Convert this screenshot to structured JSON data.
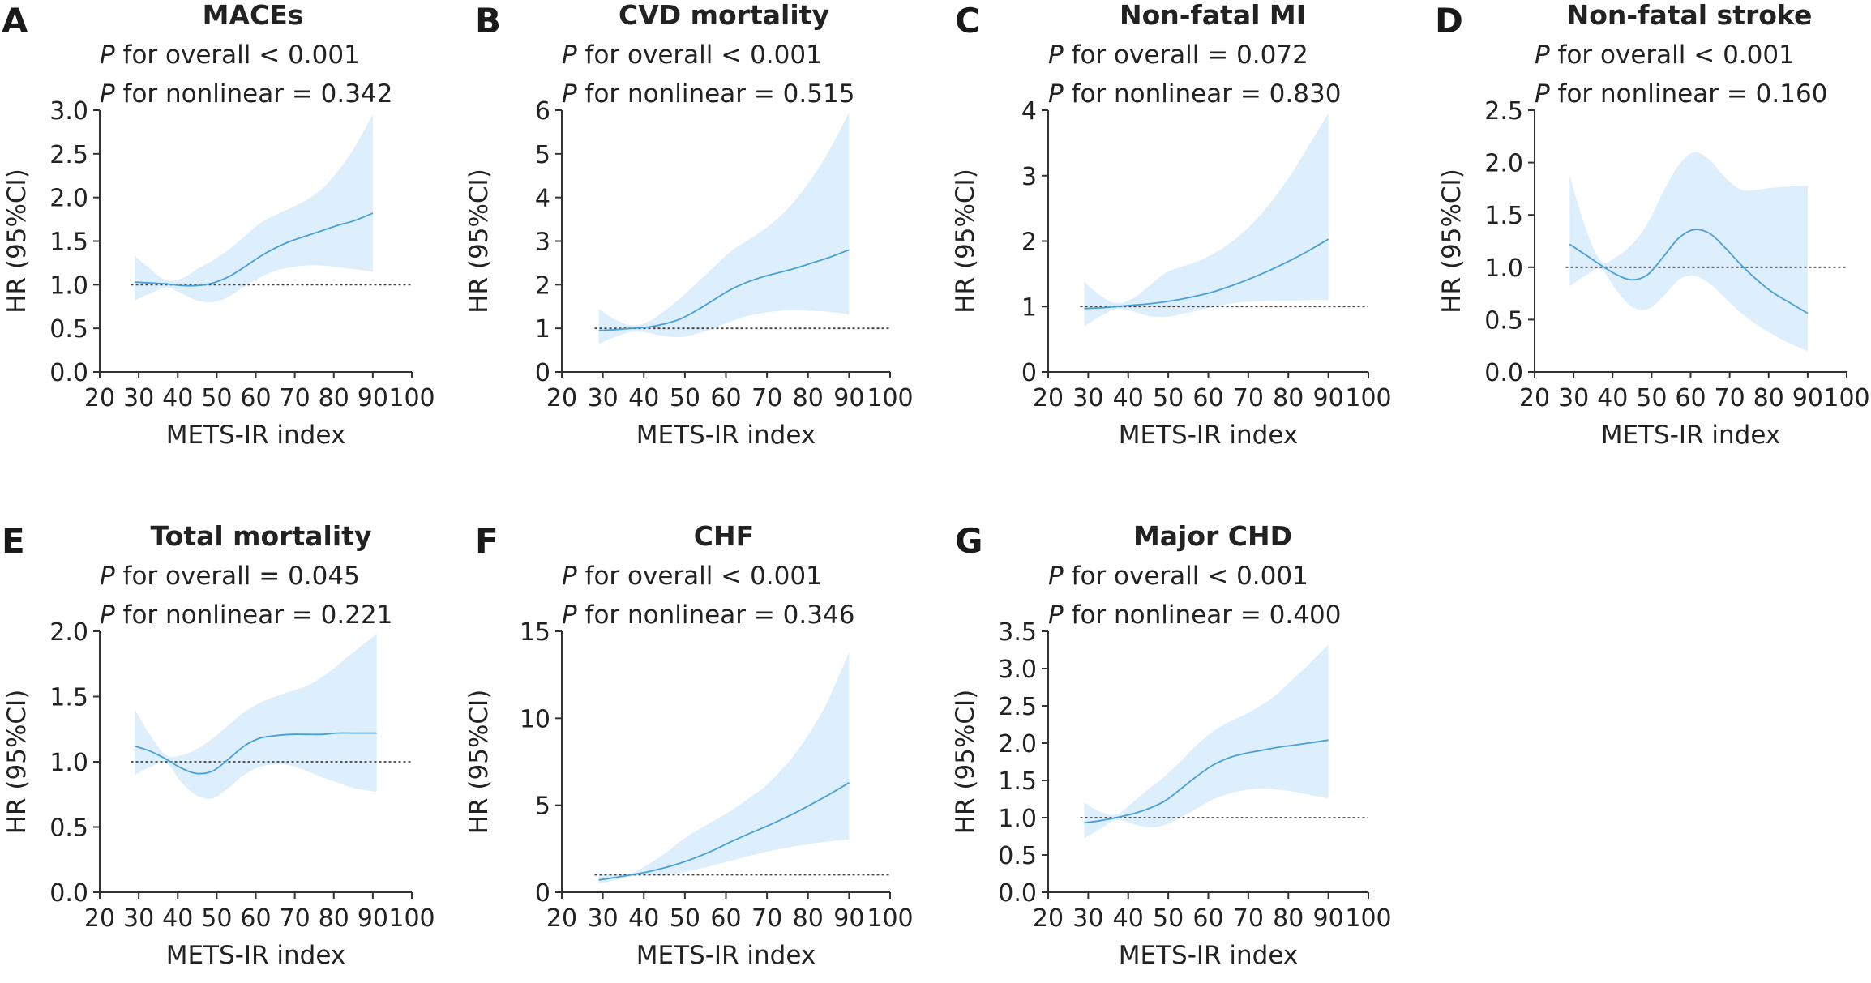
{
  "colors": {
    "band": "#ddeefc",
    "line": "#4a9fd6",
    "reference": "#444444"
  },
  "chart_data": [
    {
      "type": "line",
      "letter": "A",
      "title": "MACEs",
      "p_overall": "P for overall < 0.001",
      "p_nonlinear": "P for nonlinear = 0.342",
      "xlabel": "METS-IR index",
      "ylabel": "HR (95%CI)",
      "xlim": [
        20,
        100
      ],
      "ylim": [
        0,
        3.0
      ],
      "xticks": [
        "20",
        "30",
        "40",
        "50",
        "60",
        "70",
        "80",
        "90",
        "100"
      ],
      "yticks": [
        "0.0",
        "0.5",
        "1.0",
        "1.5",
        "2.0",
        "2.5",
        "3.0"
      ],
      "reference": 1.0,
      "series": [
        {
          "x": [
            29,
            33,
            37,
            41,
            45,
            49,
            53,
            57,
            61,
            65,
            69,
            73,
            77,
            81,
            85,
            90
          ],
          "y": [
            1.03,
            1.02,
            1.01,
            0.99,
            0.99,
            1.02,
            1.09,
            1.2,
            1.32,
            1.42,
            1.5,
            1.56,
            1.62,
            1.68,
            1.73,
            1.82
          ],
          "lower": [
            0.82,
            0.9,
            0.97,
            0.9,
            0.82,
            0.8,
            0.86,
            0.98,
            1.08,
            1.16,
            1.2,
            1.22,
            1.22,
            1.2,
            1.18,
            1.15
          ],
          "upper": [
            1.33,
            1.18,
            1.05,
            1.07,
            1.18,
            1.28,
            1.4,
            1.55,
            1.7,
            1.8,
            1.88,
            1.97,
            2.1,
            2.3,
            2.55,
            2.95
          ]
        }
      ]
    },
    {
      "type": "line",
      "letter": "B",
      "title": "CVD mortality",
      "p_overall": "P for overall < 0.001",
      "p_nonlinear": "P for nonlinear = 0.515",
      "xlabel": "METS-IR index",
      "ylabel": "HR (95%CI)",
      "xlim": [
        20,
        100
      ],
      "ylim": [
        0,
        6
      ],
      "xticks": [
        "20",
        "30",
        "40",
        "50",
        "60",
        "70",
        "80",
        "90",
        "100"
      ],
      "yticks": [
        "0",
        "1",
        "2",
        "3",
        "4",
        "5",
        "6"
      ],
      "reference": 1.0,
      "series": [
        {
          "x": [
            29,
            33,
            37,
            41,
            45,
            49,
            53,
            57,
            61,
            65,
            69,
            73,
            77,
            81,
            85,
            90
          ],
          "y": [
            0.95,
            0.97,
            1.0,
            1.03,
            1.1,
            1.22,
            1.42,
            1.65,
            1.88,
            2.05,
            2.18,
            2.28,
            2.38,
            2.5,
            2.62,
            2.8
          ],
          "lower": [
            0.65,
            0.8,
            0.92,
            0.9,
            0.82,
            0.8,
            0.88,
            1.0,
            1.15,
            1.28,
            1.35,
            1.4,
            1.42,
            1.4,
            1.38,
            1.32
          ],
          "upper": [
            1.45,
            1.2,
            1.07,
            1.15,
            1.4,
            1.7,
            2.05,
            2.4,
            2.75,
            3.0,
            3.25,
            3.55,
            3.95,
            4.45,
            5.05,
            5.95
          ]
        }
      ]
    },
    {
      "type": "line",
      "letter": "C",
      "title": "Non-fatal MI",
      "p_overall": "P for overall = 0.072",
      "p_nonlinear": "P for nonlinear = 0.830",
      "xlabel": "METS-IR index",
      "ylabel": "HR (95%CI)",
      "xlim": [
        20,
        100
      ],
      "ylim": [
        0,
        4
      ],
      "xticks": [
        "20",
        "30",
        "40",
        "50",
        "60",
        "70",
        "80",
        "90",
        "100"
      ],
      "yticks": [
        "0",
        "1",
        "2",
        "3",
        "4"
      ],
      "reference": 1.0,
      "series": [
        {
          "x": [
            29,
            33,
            37,
            41,
            45,
            49,
            53,
            57,
            61,
            65,
            69,
            73,
            77,
            81,
            85,
            90
          ],
          "y": [
            0.97,
            0.98,
            1.0,
            1.02,
            1.04,
            1.07,
            1.11,
            1.16,
            1.22,
            1.3,
            1.39,
            1.49,
            1.6,
            1.72,
            1.85,
            2.03
          ],
          "lower": [
            0.7,
            0.85,
            0.96,
            0.93,
            0.86,
            0.84,
            0.88,
            0.93,
            0.99,
            1.04,
            1.07,
            1.08,
            1.09,
            1.09,
            1.1,
            1.1
          ],
          "upper": [
            1.38,
            1.17,
            1.05,
            1.12,
            1.3,
            1.5,
            1.6,
            1.68,
            1.8,
            1.95,
            2.15,
            2.4,
            2.7,
            3.05,
            3.45,
            3.95
          ]
        }
      ]
    },
    {
      "type": "line",
      "letter": "D",
      "title": "Non-fatal stroke",
      "p_overall": "P for overall < 0.001",
      "p_nonlinear": "P for nonlinear = 0.160",
      "xlabel": "METS-IR index",
      "ylabel": "HR (95%CI)",
      "xlim": [
        20,
        100
      ],
      "ylim": [
        0,
        2.5
      ],
      "xticks": [
        "20",
        "30",
        "40",
        "50",
        "60",
        "70",
        "80",
        "90",
        "100"
      ],
      "yticks": [
        "0.0",
        "0.5",
        "1.0",
        "1.5",
        "2.0",
        "2.5"
      ],
      "reference": 1.0,
      "series": [
        {
          "x": [
            29,
            33,
            37,
            41,
            45,
            49,
            53,
            57,
            61,
            65,
            69,
            73,
            77,
            81,
            85,
            90
          ],
          "y": [
            1.22,
            1.12,
            1.02,
            0.93,
            0.88,
            0.93,
            1.1,
            1.28,
            1.36,
            1.32,
            1.18,
            1.02,
            0.88,
            0.76,
            0.67,
            0.56
          ],
          "lower": [
            0.82,
            0.92,
            0.98,
            0.78,
            0.62,
            0.6,
            0.72,
            0.88,
            0.92,
            0.84,
            0.7,
            0.56,
            0.45,
            0.36,
            0.28,
            0.2
          ],
          "upper": [
            1.88,
            1.38,
            1.06,
            1.1,
            1.22,
            1.42,
            1.72,
            1.98,
            2.1,
            2.02,
            1.85,
            1.74,
            1.74,
            1.76,
            1.77,
            1.78
          ]
        }
      ]
    },
    {
      "type": "line",
      "letter": "E",
      "title": "Total mortality",
      "p_overall": "P for overall = 0.045",
      "p_nonlinear": "P for nonlinear = 0.221",
      "xlabel": "METS-IR index",
      "ylabel": "HR (95%CI)",
      "xlim": [
        20,
        100
      ],
      "ylim": [
        0,
        2.0
      ],
      "xticks": [
        "20",
        "30",
        "40",
        "50",
        "60",
        "70",
        "80",
        "90",
        "100"
      ],
      "yticks": [
        "0.0",
        "0.5",
        "1.0",
        "1.5",
        "2.0"
      ],
      "reference": 1.0,
      "series": [
        {
          "x": [
            29,
            33,
            37,
            41,
            45,
            49,
            53,
            57,
            61,
            65,
            69,
            73,
            77,
            81,
            85,
            91
          ],
          "y": [
            1.12,
            1.08,
            1.02,
            0.95,
            0.91,
            0.93,
            1.02,
            1.12,
            1.18,
            1.2,
            1.21,
            1.21,
            1.21,
            1.22,
            1.22,
            1.22
          ],
          "lower": [
            0.9,
            0.96,
            0.99,
            0.84,
            0.74,
            0.72,
            0.8,
            0.9,
            0.96,
            0.98,
            0.97,
            0.93,
            0.88,
            0.84,
            0.8,
            0.77
          ],
          "upper": [
            1.4,
            1.2,
            1.05,
            1.05,
            1.1,
            1.18,
            1.28,
            1.38,
            1.45,
            1.5,
            1.54,
            1.58,
            1.65,
            1.74,
            1.84,
            1.98
          ]
        }
      ]
    },
    {
      "type": "line",
      "letter": "F",
      "title": "CHF",
      "p_overall": "P for overall < 0.001",
      "p_nonlinear": "P for nonlinear = 0.346",
      "xlabel": "METS-IR index",
      "ylabel": "HR (95%CI)",
      "xlim": [
        20,
        100
      ],
      "ylim": [
        0,
        15
      ],
      "xticks": [
        "20",
        "30",
        "40",
        "50",
        "60",
        "70",
        "80",
        "90",
        "100"
      ],
      "yticks": [
        "0",
        "5",
        "10",
        "15"
      ],
      "reference": 1.0,
      "series": [
        {
          "x": [
            29,
            33,
            37,
            41,
            45,
            49,
            53,
            57,
            61,
            65,
            69,
            73,
            77,
            81,
            85,
            90
          ],
          "y": [
            0.7,
            0.85,
            1.0,
            1.18,
            1.4,
            1.68,
            2.02,
            2.42,
            2.88,
            3.3,
            3.7,
            4.12,
            4.58,
            5.08,
            5.6,
            6.3
          ],
          "lower": [
            0.5,
            0.7,
            0.93,
            0.95,
            1.0,
            1.12,
            1.32,
            1.55,
            1.8,
            2.05,
            2.28,
            2.48,
            2.65,
            2.8,
            2.92,
            3.05
          ],
          "upper": [
            1.0,
            1.05,
            1.1,
            1.6,
            2.2,
            2.95,
            3.55,
            4.1,
            4.65,
            5.3,
            6.0,
            6.9,
            8.0,
            9.4,
            11.1,
            13.8
          ]
        }
      ]
    },
    {
      "type": "line",
      "letter": "G",
      "title": "Major CHD",
      "p_overall": "P for overall < 0.001",
      "p_nonlinear": "P for nonlinear = 0.400",
      "xlabel": "METS-IR index",
      "ylabel": "HR (95%CI)",
      "xlim": [
        20,
        100
      ],
      "ylim": [
        0,
        3.5
      ],
      "xticks": [
        "20",
        "30",
        "40",
        "50",
        "60",
        "70",
        "80",
        "90",
        "100"
      ],
      "yticks": [
        "0.0",
        "0.5",
        "1.0",
        "1.5",
        "2.0",
        "2.5",
        "3.0",
        "3.5"
      ],
      "reference": 1.0,
      "series": [
        {
          "x": [
            29,
            33,
            37,
            41,
            45,
            49,
            53,
            57,
            61,
            65,
            69,
            73,
            77,
            81,
            85,
            90
          ],
          "y": [
            0.93,
            0.96,
            1.0,
            1.05,
            1.12,
            1.22,
            1.38,
            1.55,
            1.7,
            1.8,
            1.86,
            1.9,
            1.94,
            1.97,
            2.0,
            2.04
          ],
          "lower": [
            0.72,
            0.85,
            0.97,
            0.92,
            0.87,
            0.9,
            1.0,
            1.12,
            1.24,
            1.32,
            1.37,
            1.39,
            1.38,
            1.35,
            1.31,
            1.26
          ],
          "upper": [
            1.2,
            1.08,
            1.04,
            1.2,
            1.38,
            1.55,
            1.75,
            1.97,
            2.15,
            2.28,
            2.38,
            2.5,
            2.65,
            2.85,
            3.05,
            3.32
          ]
        }
      ]
    }
  ]
}
